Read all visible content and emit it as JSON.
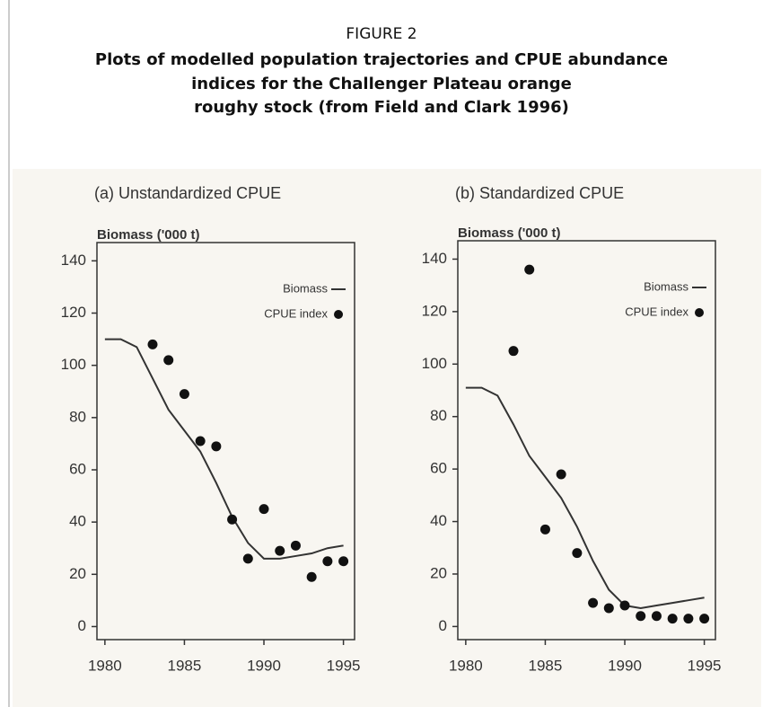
{
  "figure_label": "FIGURE 2",
  "title_lines": [
    "Plots of modelled population trajectories and CPUE abundance",
    "indices for the Challenger Plateau orange",
    "roughy stock (from Field and Clark 1996)"
  ],
  "chart_data": [
    {
      "type": "line",
      "title": "(a) Unstandardized CPUE",
      "y_label": "Biomass ('000 t)",
      "x": [
        1980,
        1981,
        1982,
        1983,
        1984,
        1985,
        1986,
        1987,
        1988,
        1989,
        1990,
        1991,
        1992,
        1993,
        1994,
        1995
      ],
      "series": [
        {
          "name": "Biomass",
          "mode": "line",
          "color": "#333333",
          "values": [
            110,
            110,
            107,
            95,
            83,
            75,
            67,
            55,
            42,
            32,
            26,
            26,
            27,
            28,
            30,
            31
          ]
        },
        {
          "name": "CPUE index",
          "mode": "markers",
          "color": "#111111",
          "values": [
            null,
            null,
            null,
            108,
            102,
            89,
            71,
            69,
            41,
            26,
            45,
            29,
            31,
            19,
            25,
            25
          ]
        }
      ],
      "xlim": [
        1979.5,
        1995.7
      ],
      "ylim": [
        -5,
        147
      ],
      "xticks": [
        1980,
        1985,
        1990,
        1995
      ],
      "yticks": [
        0,
        20,
        40,
        60,
        80,
        100,
        120,
        140
      ],
      "legend": "upper right"
    },
    {
      "type": "line",
      "title": "(b) Standardized CPUE",
      "y_label": "Biomass ('000 t)",
      "x": [
        1980,
        1981,
        1982,
        1983,
        1984,
        1985,
        1986,
        1987,
        1988,
        1989,
        1990,
        1991,
        1992,
        1993,
        1994,
        1995
      ],
      "series": [
        {
          "name": "Biomass",
          "mode": "line",
          "color": "#333333",
          "values": [
            91,
            91,
            88,
            77,
            65,
            57,
            49,
            38,
            25,
            14,
            8,
            7,
            8,
            9,
            10,
            11
          ]
        },
        {
          "name": "CPUE index",
          "mode": "markers",
          "color": "#111111",
          "values": [
            null,
            null,
            null,
            105,
            136,
            37,
            58,
            28,
            9,
            7,
            8,
            4,
            4,
            3,
            3,
            3
          ]
        }
      ],
      "xlim": [
        1979.5,
        1995.7
      ],
      "ylim": [
        -5,
        147
      ],
      "xticks": [
        1980,
        1985,
        1990,
        1995
      ],
      "yticks": [
        0,
        20,
        40,
        60,
        80,
        100,
        120,
        140
      ],
      "legend": "upper right"
    }
  ]
}
